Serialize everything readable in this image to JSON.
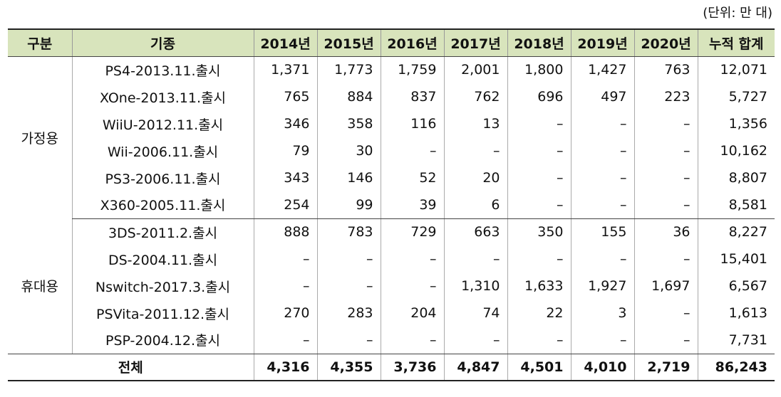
{
  "unit_note": "(단위: 만 대)",
  "headers": [
    "구분",
    "기종",
    "2014년",
    "2015년",
    "2016년",
    "2017년",
    "2018년",
    "2019년",
    "2020년",
    "누적 합계"
  ],
  "groups": [
    {
      "category": "가정용",
      "rows": [
        {
          "model": "PS4-2013.11.출시",
          "values": [
            "1,371",
            "1,773",
            "1,759",
            "2,001",
            "1,800",
            "1,427",
            "763",
            "12,071"
          ]
        },
        {
          "model": "XOne-2013.11.출시",
          "values": [
            "765",
            "884",
            "837",
            "762",
            "696",
            "497",
            "223",
            "5,727"
          ]
        },
        {
          "model": "WiiU-2012.11.출시",
          "values": [
            "346",
            "358",
            "116",
            "13",
            "–",
            "–",
            "–",
            "1,356"
          ]
        },
        {
          "model": "Wii-2006.11.출시",
          "values": [
            "79",
            "30",
            "–",
            "–",
            "–",
            "–",
            "–",
            "10,162"
          ]
        },
        {
          "model": "PS3-2006.11.출시",
          "values": [
            "343",
            "146",
            "52",
            "20",
            "–",
            "–",
            "–",
            "8,807"
          ]
        },
        {
          "model": "X360-2005.11.출시",
          "values": [
            "254",
            "99",
            "39",
            "6",
            "–",
            "–",
            "–",
            "8,581"
          ]
        }
      ]
    },
    {
      "category": "휴대용",
      "rows": [
        {
          "model": "3DS-2011.2.출시",
          "values": [
            "888",
            "783",
            "729",
            "663",
            "350",
            "155",
            "36",
            "8,227"
          ]
        },
        {
          "model": "DS-2004.11.출시",
          "values": [
            "–",
            "–",
            "–",
            "–",
            "–",
            "–",
            "–",
            "15,401"
          ]
        },
        {
          "model": "Nswitch-2017.3.출시",
          "values": [
            "–",
            "–",
            "–",
            "1,310",
            "1,633",
            "1,927",
            "1,697",
            "6,567"
          ]
        },
        {
          "model": "PSVita-2011.12.출시",
          "values": [
            "270",
            "283",
            "204",
            "74",
            "22",
            "3",
            "–",
            "1,613"
          ]
        },
        {
          "model": "PSP-2004.12.출시",
          "values": [
            "–",
            "–",
            "–",
            "–",
            "–",
            "–",
            "–",
            "7,731"
          ]
        }
      ]
    }
  ],
  "total": {
    "label": "전체",
    "values": [
      "4,316",
      "4,355",
      "3,736",
      "4,847",
      "4,501",
      "4,010",
      "2,719",
      "86,243"
    ]
  }
}
